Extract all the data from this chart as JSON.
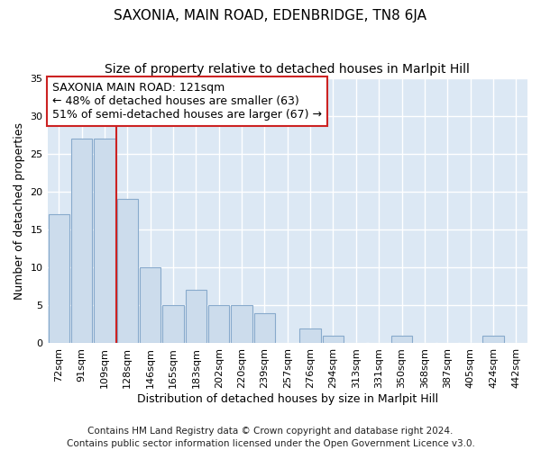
{
  "title": "SAXONIA, MAIN ROAD, EDENBRIDGE, TN8 6JA",
  "subtitle": "Size of property relative to detached houses in Marlpit Hill",
  "xlabel": "Distribution of detached houses by size in Marlpit Hill",
  "ylabel": "Number of detached properties",
  "categories": [
    "72sqm",
    "91sqm",
    "109sqm",
    "128sqm",
    "146sqm",
    "165sqm",
    "183sqm",
    "202sqm",
    "220sqm",
    "239sqm",
    "257sqm",
    "276sqm",
    "294sqm",
    "313sqm",
    "331sqm",
    "350sqm",
    "368sqm",
    "387sqm",
    "405sqm",
    "424sqm",
    "442sqm"
  ],
  "values": [
    17,
    27,
    27,
    19,
    10,
    5,
    7,
    5,
    5,
    4,
    0,
    2,
    1,
    0,
    0,
    1,
    0,
    0,
    0,
    1,
    0
  ],
  "bar_color": "#ccdcec",
  "bar_edge_color": "#88aacc",
  "vline_color": "#cc2222",
  "vline_x": 2.5,
  "annotation_line1": "SAXONIA MAIN ROAD: 121sqm",
  "annotation_line2": "← 48% of detached houses are smaller (63)",
  "annotation_line3": "51% of semi-detached houses are larger (67) →",
  "annotation_box_facecolor": "#ffffff",
  "annotation_box_edgecolor": "#cc2222",
  "ylim": [
    0,
    35
  ],
  "yticks": [
    0,
    5,
    10,
    15,
    20,
    25,
    30,
    35
  ],
  "fig_bg_color": "#ffffff",
  "plot_bg_color": "#dce8f4",
  "grid_color": "#ffffff",
  "title_fontsize": 11,
  "subtitle_fontsize": 10,
  "xlabel_fontsize": 9,
  "ylabel_fontsize": 9,
  "tick_fontsize": 8,
  "annotation_fontsize": 9,
  "footer_fontsize": 7.5,
  "footer": "Contains HM Land Registry data © Crown copyright and database right 2024.\nContains public sector information licensed under the Open Government Licence v3.0."
}
